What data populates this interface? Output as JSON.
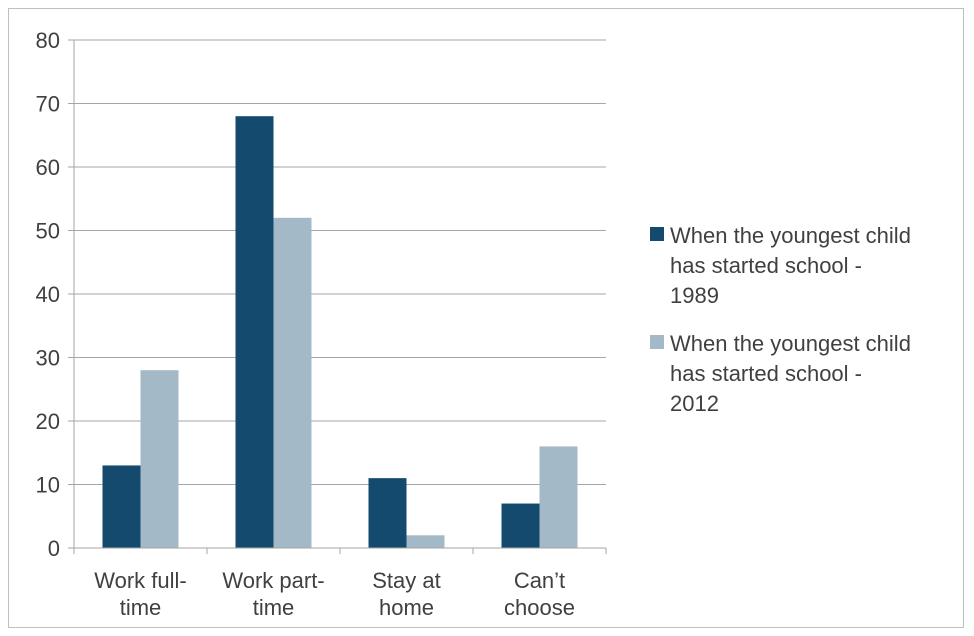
{
  "chart_data": {
    "type": "bar",
    "categories": [
      [
        "Work full-",
        "time"
      ],
      [
        "Work part-",
        "time"
      ],
      [
        "Stay at",
        "home"
      ],
      [
        "Can’t",
        "choose"
      ]
    ],
    "series": [
      {
        "name": [
          "When the youngest child",
          "has started school -",
          "1989"
        ],
        "color": "#134a6d",
        "values": [
          13,
          68,
          11,
          7
        ]
      },
      {
        "name": [
          "When the youngest child",
          "has started school -",
          "2012"
        ],
        "color": "#a3b9c8",
        "values": [
          28,
          52,
          2,
          16
        ]
      }
    ],
    "yticks": [
      "0",
      "10",
      "20",
      "30",
      "40",
      "50",
      "60",
      "70",
      "80"
    ],
    "ylim": [
      0,
      80
    ],
    "grid": true,
    "legend": "right",
    "title": "",
    "xlabel": "",
    "ylabel": ""
  }
}
